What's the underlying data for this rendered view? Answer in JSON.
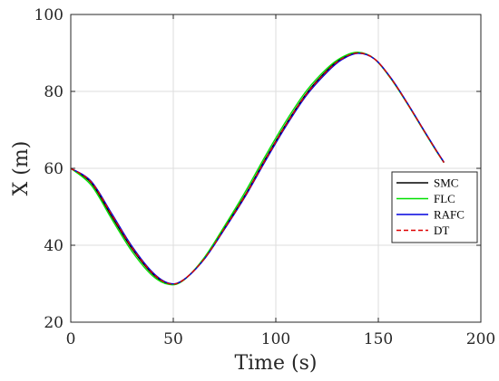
{
  "chart_data": {
    "type": "line",
    "xlabel": "Time (s)",
    "ylabel": "X (m)",
    "xlim": [
      0,
      200
    ],
    "ylim": [
      20,
      100
    ],
    "xticks": [
      "0",
      "50",
      "100",
      "150",
      "200"
    ],
    "yticks": [
      "20",
      "40",
      "60",
      "80",
      "100"
    ],
    "grid": true,
    "legend": "right",
    "x": [
      0,
      10,
      20,
      30,
      40,
      48,
      55,
      65,
      75,
      85,
      95,
      105,
      115,
      125,
      132,
      140,
      148,
      156,
      164,
      172,
      178,
      182
    ],
    "series": [
      {
        "name": "SMC",
        "color": "#000000",
        "dash": "solid",
        "values": [
          60,
          56.2,
          47.5,
          39.0,
          32.5,
          30.0,
          31.0,
          36.5,
          44.5,
          53.0,
          62.5,
          71.5,
          79.5,
          85.5,
          88.5,
          90.0,
          88.5,
          83.5,
          77.0,
          70.0,
          64.8,
          61.5
        ]
      },
      {
        "name": "FLC",
        "color": "#00e000",
        "dash": "solid",
        "values": [
          60,
          55.6,
          46.8,
          38.3,
          32.0,
          29.8,
          30.9,
          36.7,
          45.0,
          53.8,
          63.3,
          72.3,
          80.2,
          86.0,
          88.8,
          90.2,
          88.5,
          83.4,
          76.9,
          69.9,
          64.7,
          61.5
        ]
      },
      {
        "name": "RAFC",
        "color": "#0000dd",
        "dash": "solid",
        "values": [
          60,
          56.6,
          48.2,
          39.6,
          32.9,
          30.1,
          31.0,
          36.3,
          44.2,
          52.6,
          62.0,
          71.0,
          79.0,
          85.0,
          88.2,
          89.9,
          88.5,
          83.6,
          77.1,
          70.1,
          64.9,
          61.6
        ]
      },
      {
        "name": "DT",
        "color": "#dd0000",
        "dash": "dashed",
        "values": [
          60,
          56.4,
          47.9,
          39.3,
          32.7,
          30.0,
          31.0,
          36.4,
          44.4,
          52.8,
          62.3,
          71.3,
          79.3,
          85.3,
          88.4,
          90.0,
          88.5,
          83.5,
          77.0,
          70.0,
          64.8,
          61.5
        ]
      }
    ]
  }
}
